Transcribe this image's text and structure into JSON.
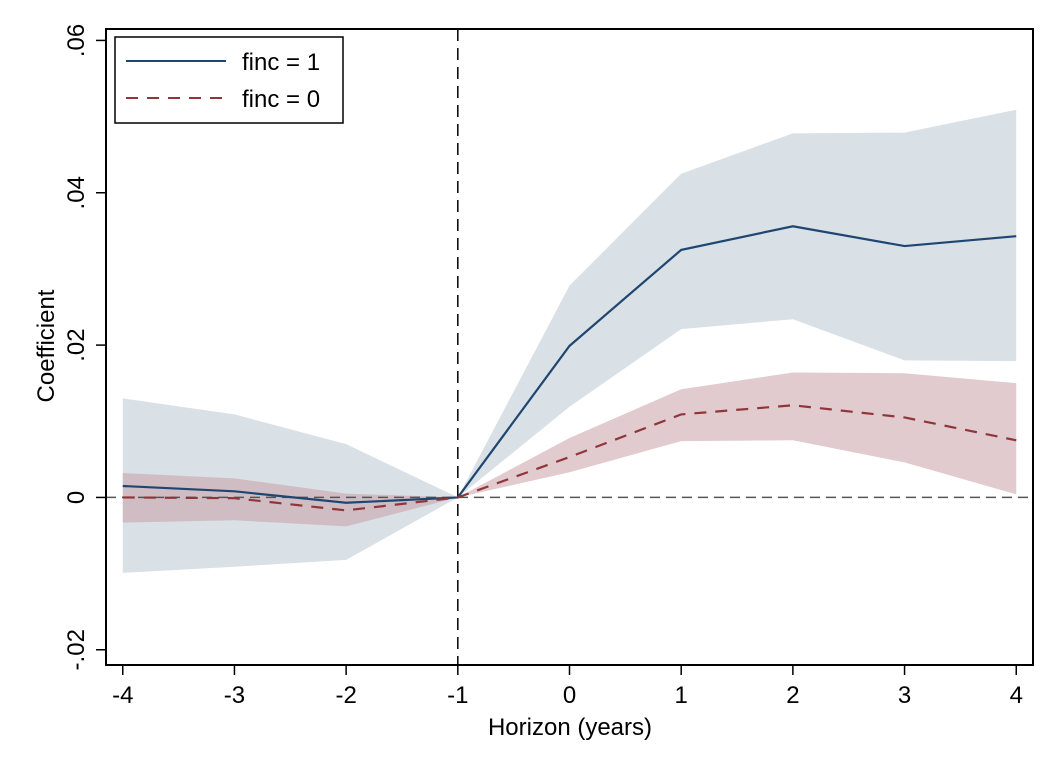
{
  "chart_data": {
    "type": "line",
    "title": "",
    "xlabel": "Horizon (years)",
    "ylabel": "Coefficient",
    "x": [
      -4,
      -3,
      -2,
      -1,
      0,
      1,
      2,
      3,
      4
    ],
    "x_ticks": [
      "-4",
      "-3",
      "-2",
      "-1",
      "0",
      "1",
      "2",
      "3",
      "4"
    ],
    "y_ticks": [
      {
        "value": -0.02,
        "label": "-.02"
      },
      {
        "value": 0,
        "label": "0"
      },
      {
        "value": 0.02,
        "label": ".02"
      },
      {
        "value": 0.04,
        "label": ".04"
      },
      {
        "value": 0.06,
        "label": ".06"
      }
    ],
    "ylim": [
      -0.022,
      0.0615
    ],
    "xlim": [
      -4.15,
      4.15
    ],
    "grid": false,
    "reference_lines": {
      "horizontal_at": 0,
      "vertical_at": -1
    },
    "legend_position": "top-left",
    "series": [
      {
        "name": "finc = 1",
        "color": "#1f4670",
        "band_color": "#d9e0e6",
        "style": "solid",
        "values": [
          0.0015,
          0.0008,
          -0.0007,
          0,
          0.0199,
          0.0325,
          0.0356,
          0.033,
          0.0343
        ],
        "ci_upper": [
          0.013,
          0.0109,
          0.007,
          0,
          0.0278,
          0.0425,
          0.0478,
          0.0479,
          0.0509
        ],
        "ci_lower": [
          -0.0099,
          -0.0091,
          -0.0082,
          0,
          0.0119,
          0.0221,
          0.0234,
          0.018,
          0.0179
        ]
      },
      {
        "name": "finc = 0",
        "color": "#90353b",
        "band_color": "#c9a1a6",
        "style": "dashed",
        "values": [
          0,
          -0.0001,
          -0.0017,
          0,
          0.0053,
          0.0109,
          0.0121,
          0.0105,
          0.0075
        ],
        "ci_upper": [
          0.0032,
          0.0025,
          0.0005,
          0,
          0.0078,
          0.0142,
          0.0164,
          0.0163,
          0.015
        ],
        "ci_lower": [
          -0.0033,
          -0.003,
          -0.0038,
          0,
          0.0033,
          0.0074,
          0.0075,
          0.0046,
          0.0004
        ]
      }
    ]
  }
}
